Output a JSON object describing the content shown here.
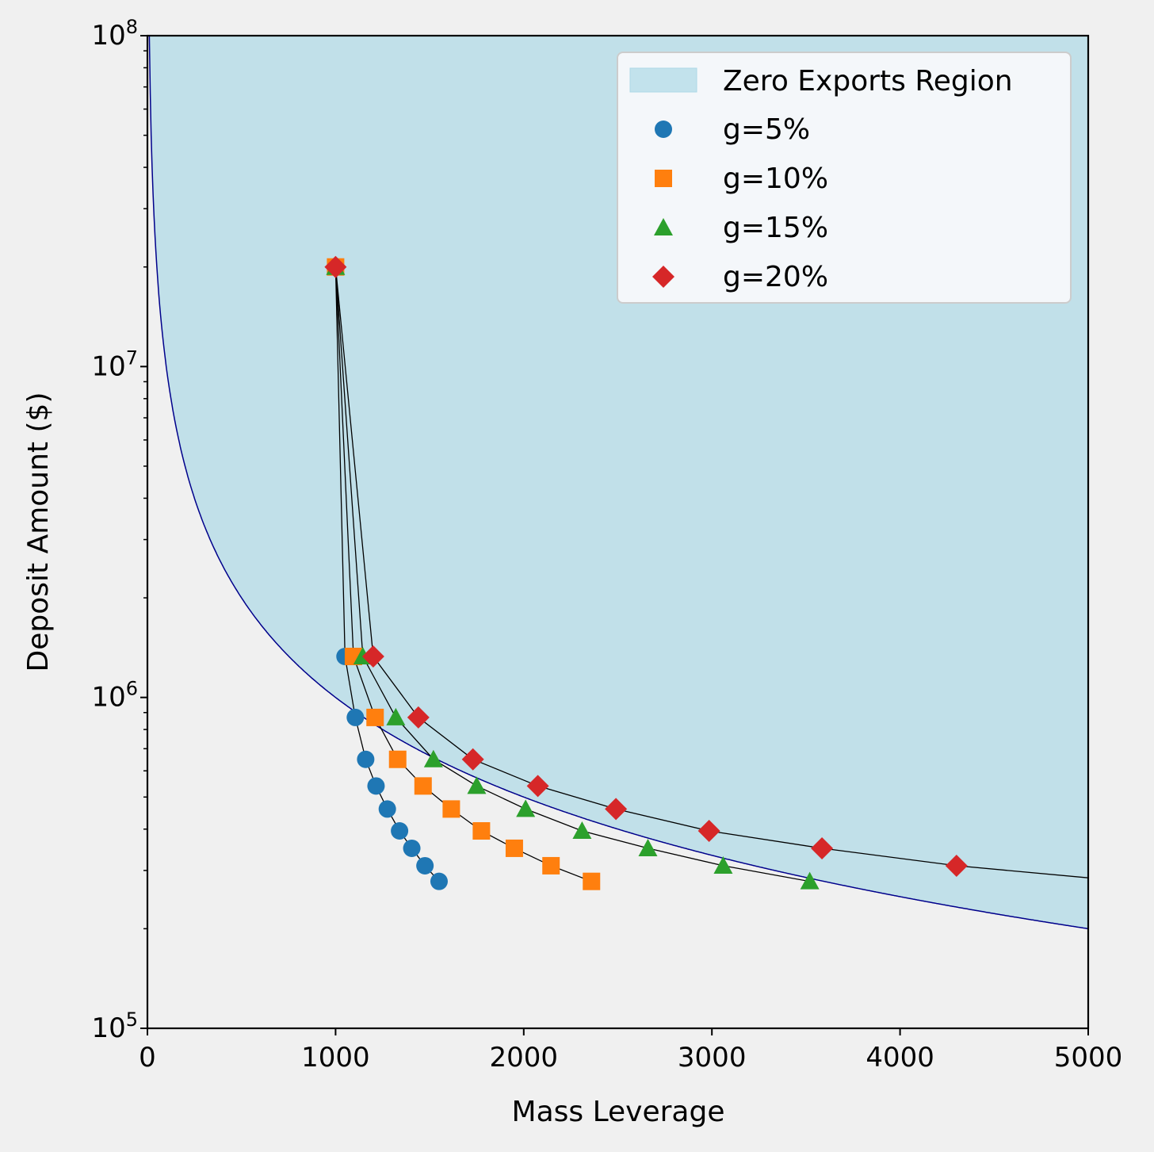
{
  "chart_data": {
    "type": "scatter",
    "xlabel": "Mass Leverage",
    "ylabel": "Deposit Amount ($)",
    "xlim": [
      0,
      5000
    ],
    "ylim": [
      100000,
      100000000
    ],
    "yscale": "log",
    "x_ticks": [
      0,
      1000,
      2000,
      3000,
      4000,
      5000
    ],
    "x_tick_labels": [
      "0",
      "1000",
      "2000",
      "3000",
      "4000",
      "5000"
    ],
    "y_ticks": [
      {
        "value": 100000,
        "base": "10",
        "exp": "5"
      },
      {
        "value": 1000000,
        "base": "10",
        "exp": "6"
      },
      {
        "value": 10000000,
        "base": "10",
        "exp": "7"
      },
      {
        "value": 100000000,
        "base": "10",
        "exp": "8"
      }
    ],
    "region": {
      "name": "Zero Exports Region",
      "color": "#add8e6",
      "boundary_color": "#00008b",
      "boundary_rule": "y = 1e9 / x",
      "boundary_x_start": 10,
      "boundary_x_end": 5000
    },
    "legend": {
      "placement": "top-right",
      "region_label": "Zero Exports Region",
      "entries": [
        "g=5%",
        "g=10%",
        "g=15%",
        "g=20%"
      ]
    },
    "series": [
      {
        "name": "g=5%",
        "marker": "circle",
        "color": "#1f77b4",
        "x": [
          1000,
          1050,
          1105,
          1160,
          1215,
          1275,
          1340,
          1405,
          1475,
          1550
        ],
        "y": [
          20000000,
          1330000,
          870000,
          650000,
          540000,
          460000,
          395000,
          350000,
          310000,
          278000
        ]
      },
      {
        "name": "g=10%",
        "marker": "square",
        "color": "#ff7f0e",
        "x": [
          1000,
          1095,
          1210,
          1330,
          1465,
          1615,
          1775,
          1950,
          2145,
          2360
        ],
        "y": [
          20000000,
          1330000,
          870000,
          650000,
          540000,
          460000,
          395000,
          350000,
          310000,
          278000
        ]
      },
      {
        "name": "g=15%",
        "marker": "triangle",
        "color": "#2ca02c",
        "x": [
          1000,
          1145,
          1320,
          1520,
          1750,
          2010,
          2310,
          2660,
          3060,
          3520
        ],
        "y": [
          20000000,
          1330000,
          870000,
          650000,
          540000,
          460000,
          395000,
          350000,
          310000,
          278000
        ]
      },
      {
        "name": "g=20%",
        "marker": "diamond",
        "color": "#d62728",
        "x": [
          1000,
          1200,
          1440,
          1730,
          2075,
          2490,
          2985,
          3585,
          4300
        ],
        "y": [
          20000000,
          1330000,
          870000,
          650000,
          540000,
          460000,
          395000,
          350000,
          310000
        ],
        "line_extends_to": {
          "x": 5000,
          "y": 285000
        }
      }
    ]
  }
}
